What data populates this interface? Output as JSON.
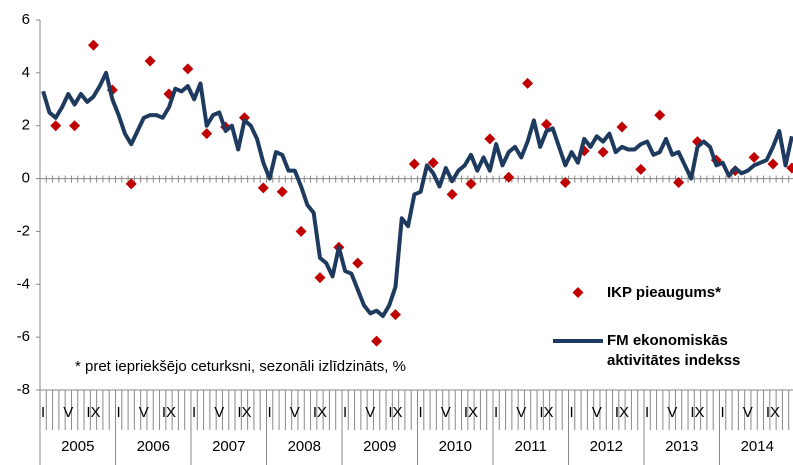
{
  "chart_data": {
    "type": "line",
    "categories": [
      "I",
      null,
      null,
      null,
      "V",
      null,
      null,
      null,
      "IX",
      null,
      null,
      null,
      "I",
      null,
      null,
      null,
      "V",
      null,
      null,
      null,
      "IX",
      null,
      null,
      null,
      "I",
      null,
      null,
      null,
      "V",
      null,
      null,
      null,
      "IX",
      null,
      null,
      null,
      "I",
      null,
      null,
      null,
      "V",
      null,
      null,
      null,
      "IX",
      null,
      null,
      null,
      "I",
      null,
      null,
      null,
      "V",
      null,
      null,
      null,
      "IX",
      null,
      null,
      null,
      "I",
      null,
      null,
      null,
      "V",
      null,
      null,
      null,
      "IX",
      null,
      null,
      null,
      "I",
      null,
      null,
      null,
      "V",
      null,
      null,
      null,
      "IX",
      null,
      null,
      null,
      "I",
      null,
      null,
      null,
      "V",
      null,
      null,
      null,
      "IX",
      null,
      null,
      null,
      "I",
      null,
      null,
      null,
      "V",
      null,
      null,
      null,
      "IX",
      null,
      null,
      null,
      "I",
      null,
      null,
      null,
      "V",
      null,
      null,
      null,
      "IX",
      null,
      null,
      null
    ],
    "years": [
      "2005",
      "2006",
      "2007",
      "2008",
      "2009",
      "2010",
      "2011",
      "2012",
      "2013",
      "2014"
    ],
    "series": [
      {
        "name": "IKP pieaugums*",
        "type": "scatter",
        "color": "#c00000",
        "values": [
          null,
          null,
          2.0,
          null,
          null,
          2.0,
          null,
          null,
          5.05,
          null,
          null,
          3.35,
          null,
          null,
          -0.2,
          null,
          null,
          4.45,
          null,
          null,
          3.2,
          null,
          null,
          4.15,
          null,
          null,
          1.7,
          null,
          null,
          1.95,
          null,
          null,
          2.3,
          null,
          null,
          -0.35,
          null,
          null,
          -0.5,
          null,
          null,
          -2.0,
          null,
          null,
          -3.75,
          null,
          null,
          -2.6,
          null,
          null,
          -3.2,
          null,
          null,
          -6.15,
          null,
          null,
          -5.15,
          null,
          null,
          0.55,
          null,
          null,
          0.6,
          null,
          null,
          -0.6,
          null,
          null,
          -0.2,
          null,
          null,
          1.5,
          null,
          null,
          0.05,
          null,
          null,
          3.6,
          null,
          null,
          2.05,
          null,
          null,
          -0.15,
          null,
          null,
          1.05,
          null,
          null,
          1.0,
          null,
          null,
          1.95,
          null,
          null,
          0.35,
          null,
          null,
          2.4,
          null,
          null,
          -0.15,
          null,
          null,
          1.4,
          null,
          null,
          0.7,
          null,
          null,
          0.3,
          null,
          null,
          0.8,
          null,
          null,
          0.55,
          null,
          null,
          0.4
        ]
      },
      {
        "name": "FM ekonomiskās aktivitātes indekss",
        "type": "line",
        "color": "#1f3a5f",
        "values": [
          3.3,
          2.5,
          2.3,
          2.7,
          3.2,
          2.8,
          3.2,
          2.9,
          3.1,
          3.5,
          4.0,
          3.0,
          2.4,
          1.7,
          1.3,
          1.8,
          2.3,
          2.4,
          2.4,
          2.3,
          2.7,
          3.4,
          3.3,
          3.5,
          3.0,
          3.6,
          2.0,
          2.4,
          2.5,
          1.8,
          2.0,
          1.1,
          2.2,
          2.0,
          1.5,
          0.6,
          0.0,
          1.0,
          0.9,
          0.3,
          0.3,
          -0.3,
          -1.0,
          -1.3,
          -3.0,
          -3.2,
          -3.7,
          -2.6,
          -3.5,
          -3.6,
          -4.2,
          -4.8,
          -5.1,
          -5.0,
          -5.2,
          -4.8,
          -4.1,
          -1.5,
          -1.8,
          -0.6,
          -0.5,
          0.5,
          0.2,
          -0.3,
          0.4,
          -0.1,
          0.3,
          0.5,
          0.9,
          0.3,
          0.8,
          0.3,
          1.3,
          0.5,
          1.0,
          1.2,
          0.8,
          1.4,
          2.2,
          1.2,
          1.8,
          1.9,
          1.2,
          0.5,
          1.0,
          0.6,
          1.5,
          1.2,
          1.6,
          1.4,
          1.7,
          1.0,
          1.2,
          1.1,
          1.1,
          1.3,
          1.4,
          0.9,
          1.0,
          1.5,
          0.9,
          1.0,
          0.5,
          0.0,
          1.2,
          1.4,
          1.2,
          0.5,
          0.6,
          0.1,
          0.4,
          0.2,
          0.3,
          0.5,
          0.6,
          0.7,
          1.2,
          1.8,
          0.5,
          1.6
        ]
      }
    ],
    "footnote": "* pret iepriekšējo ceturksni, sezonāli izlīdzināts, %",
    "ylim": [
      -8,
      6
    ],
    "yticks": [
      -8,
      -6,
      -4,
      -2,
      0,
      2,
      4,
      6
    ]
  }
}
